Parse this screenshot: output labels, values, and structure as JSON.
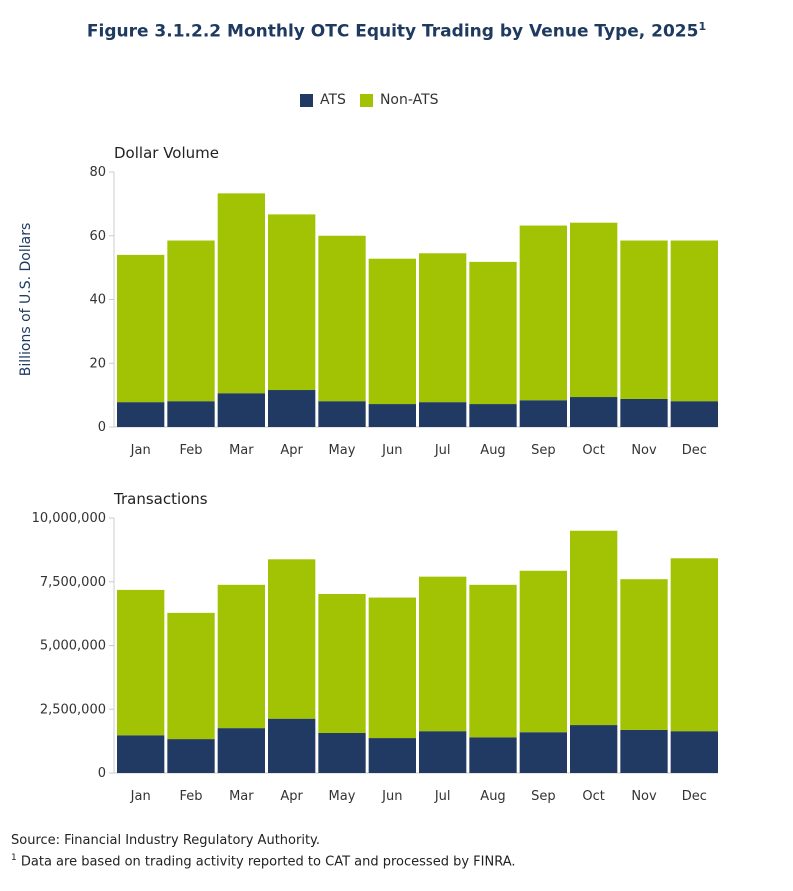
{
  "title": "Figure 3.1.2.2 Monthly OTC Equity Trading by Venue Type, 2025",
  "title_footnote_mark": "1",
  "legend": [
    {
      "label": "ATS",
      "color": "#213a63"
    },
    {
      "label": "Non-ATS",
      "color": "#a1c304"
    }
  ],
  "chart_data": [
    {
      "type": "bar",
      "stacked": true,
      "title": "Dollar Volume",
      "ylabel": "Billions of U.S. Dollars",
      "xlabel": "",
      "categories": [
        "Jan",
        "Feb",
        "Mar",
        "Apr",
        "May",
        "Jun",
        "Jul",
        "Aug",
        "Sep",
        "Oct",
        "Nov",
        "Dec"
      ],
      "ylim": [
        0,
        80
      ],
      "yticks": [
        0,
        20,
        40,
        60,
        80
      ],
      "ytick_labels": [
        "0",
        "20",
        "40",
        "60",
        "80"
      ],
      "series": [
        {
          "name": "ATS",
          "color": "#213a63",
          "values": [
            7.8,
            8.1,
            10.6,
            11.6,
            8.1,
            7.2,
            7.8,
            7.2,
            8.4,
            9.4,
            8.8,
            8.1
          ]
        },
        {
          "name": "Non-ATS",
          "color": "#a1c304",
          "values": [
            46.2,
            50.4,
            62.7,
            55.1,
            51.9,
            45.6,
            46.7,
            44.6,
            54.8,
            54.7,
            49.7,
            50.4
          ]
        }
      ],
      "grid": false
    },
    {
      "type": "bar",
      "stacked": true,
      "title": "Transactions",
      "ylabel": "",
      "xlabel": "",
      "categories": [
        "Jan",
        "Feb",
        "Mar",
        "Apr",
        "May",
        "Jun",
        "Jul",
        "Aug",
        "Sep",
        "Oct",
        "Nov",
        "Dec"
      ],
      "ylim": [
        0,
        10000000
      ],
      "yticks": [
        0,
        2500000,
        5000000,
        7500000,
        10000000
      ],
      "ytick_labels": [
        "0",
        "2,500,000",
        "5,000,000",
        "7,500,000",
        "10,000,000"
      ],
      "series": [
        {
          "name": "ATS",
          "color": "#213a63",
          "values": [
            1480000,
            1330000,
            1760000,
            2130000,
            1570000,
            1370000,
            1640000,
            1400000,
            1600000,
            1880000,
            1690000,
            1640000
          ]
        },
        {
          "name": "Non-ATS",
          "color": "#a1c304",
          "values": [
            5700000,
            4950000,
            5620000,
            6250000,
            5450000,
            5510000,
            6060000,
            5980000,
            6330000,
            7620000,
            5910000,
            6780000
          ]
        }
      ],
      "grid": false
    }
  ],
  "source": "Source: Financial Industry Regulatory Authority.",
  "footnote_mark": "1",
  "footnote": "Data are based on trading activity reported to CAT and processed by FINRA."
}
